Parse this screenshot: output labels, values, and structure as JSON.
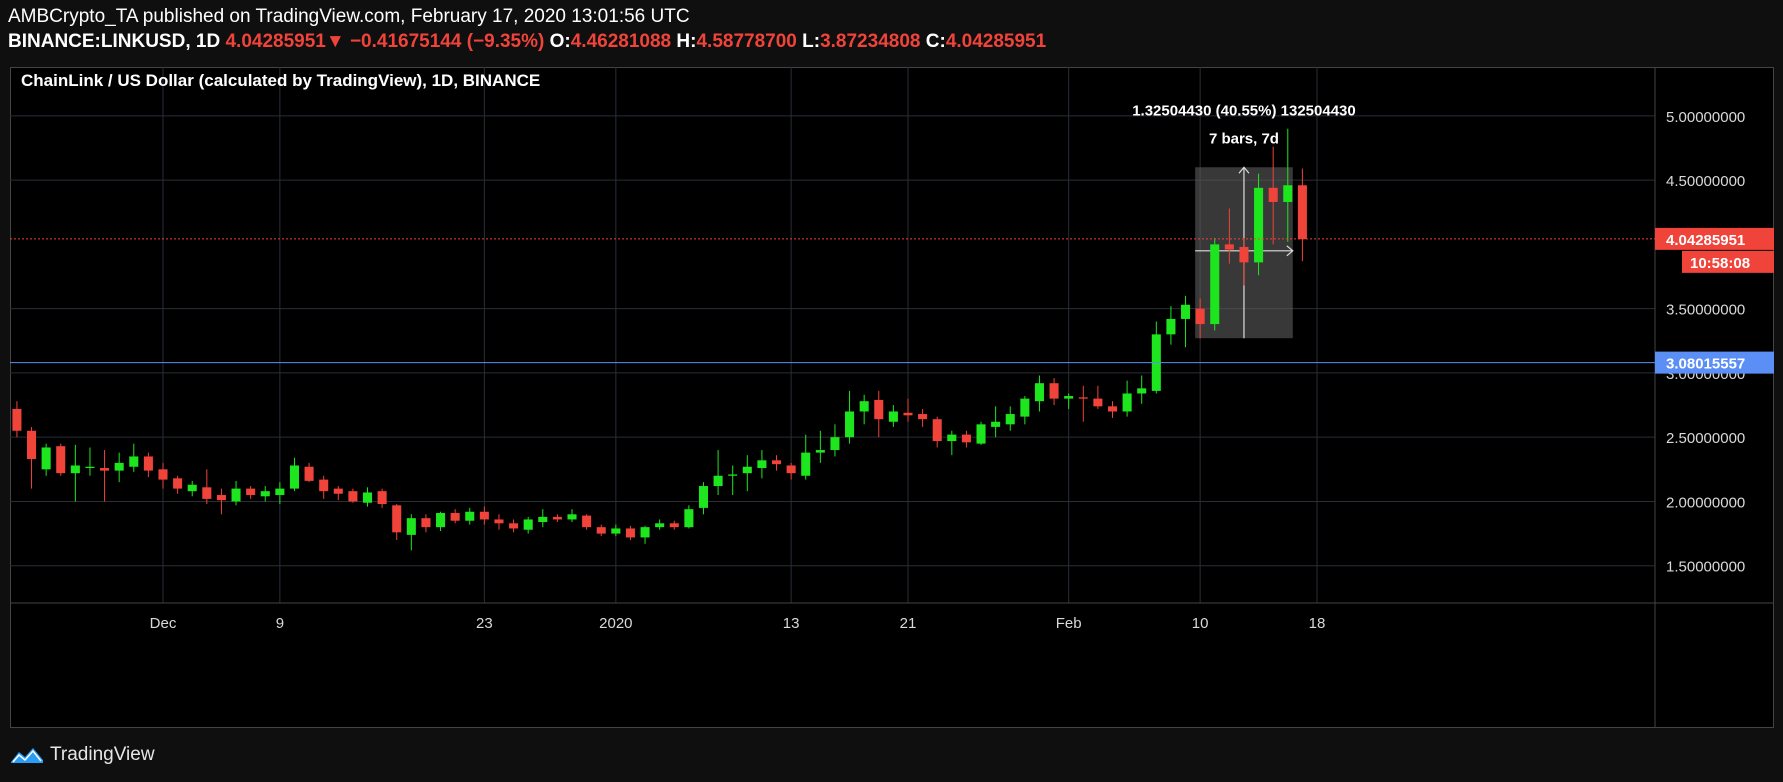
{
  "header": {
    "line1": "AMBCrypto_TA published on TradingView.com, February 17, 2020 13:01:56 UTC",
    "symbol": "BINANCE:LINKUSD, 1D",
    "last": "4.04285951",
    "change_arrow": "▼",
    "change": "−0.41675144 (−9.35%)",
    "o_label": "O:",
    "o": "4.46281088",
    "h_label": "H:",
    "h": "4.58778700",
    "l_label": "L:",
    "l": "3.87234808",
    "c_label": "C:",
    "c": "4.04285951"
  },
  "footer": {
    "brand": "TradingView"
  },
  "colors": {
    "up": "#1ee61e",
    "down": "#f0433a",
    "grid": "#2a2e39",
    "support": "#5b8ff5",
    "price_line": "#f0433a",
    "bg": "#000000"
  },
  "chart_data": {
    "type": "candlestick",
    "title": "ChainLink / US Dollar (calculated by TradingView), 1D, BINANCE",
    "x_tick_labels": [
      {
        "label": "Dec",
        "date": "2019-12-01"
      },
      {
        "label": "9",
        "date": "2019-12-09"
      },
      {
        "label": "23",
        "date": "2019-12-23"
      },
      {
        "label": "2020",
        "date": "2020-01-01"
      },
      {
        "label": "13",
        "date": "2020-01-13"
      },
      {
        "label": "21",
        "date": "2020-01-21"
      },
      {
        "label": "Feb",
        "date": "2020-02-01"
      },
      {
        "label": "10",
        "date": "2020-02-10"
      },
      {
        "label": "18",
        "date": "2020-02-18"
      }
    ],
    "y_tick_labels": [
      "5.00000000",
      "4.50000000",
      "3.50000000",
      "3.00000000",
      "2.50000000",
      "2.00000000",
      "1.50000000"
    ],
    "y_ticks": [
      5.0,
      4.5,
      3.5,
      3.0,
      2.5,
      2.0,
      1.5
    ],
    "ylim": [
      1.21,
      5.38
    ],
    "scale": "linear",
    "grid": true,
    "price_label": "4.04285951",
    "price_value": 4.04285951,
    "countdown_label": "10:58:08",
    "support_label": "3.08015557",
    "support_value": 3.08015557,
    "measure": {
      "start_date": "2020-02-10",
      "end_date": "2020-02-16",
      "low": 3.27,
      "high": 4.6,
      "label_line1": "1.32504430 (40.55%) 132504430",
      "label_line2": "7 bars, 7d"
    },
    "candles": [
      {
        "date": "2019-11-21",
        "o": 2.72,
        "h": 2.78,
        "l": 2.5,
        "c": 2.55
      },
      {
        "date": "2019-11-22",
        "o": 2.55,
        "h": 2.58,
        "l": 2.1,
        "c": 2.33
      },
      {
        "date": "2019-11-23",
        "o": 2.25,
        "h": 2.45,
        "l": 2.2,
        "c": 2.42
      },
      {
        "date": "2019-11-24",
        "o": 2.43,
        "h": 2.45,
        "l": 2.2,
        "c": 2.22
      },
      {
        "date": "2019-11-25",
        "o": 2.22,
        "h": 2.44,
        "l": 2.0,
        "c": 2.28
      },
      {
        "date": "2019-11-26",
        "o": 2.26,
        "h": 2.42,
        "l": 2.2,
        "c": 2.27
      },
      {
        "date": "2019-11-27",
        "o": 2.26,
        "h": 2.4,
        "l": 2.0,
        "c": 2.24
      },
      {
        "date": "2019-11-28",
        "o": 2.24,
        "h": 2.38,
        "l": 2.15,
        "c": 2.3
      },
      {
        "date": "2019-11-29",
        "o": 2.27,
        "h": 2.45,
        "l": 2.23,
        "c": 2.35
      },
      {
        "date": "2019-11-30",
        "o": 2.35,
        "h": 2.38,
        "l": 2.19,
        "c": 2.24
      },
      {
        "date": "2019-12-01",
        "o": 2.25,
        "h": 2.3,
        "l": 2.1,
        "c": 2.17
      },
      {
        "date": "2019-12-02",
        "o": 2.18,
        "h": 2.2,
        "l": 2.06,
        "c": 2.1
      },
      {
        "date": "2019-12-03",
        "o": 2.08,
        "h": 2.16,
        "l": 2.04,
        "c": 2.13
      },
      {
        "date": "2019-12-04",
        "o": 2.11,
        "h": 2.25,
        "l": 1.98,
        "c": 2.02
      },
      {
        "date": "2019-12-05",
        "o": 2.05,
        "h": 2.1,
        "l": 1.9,
        "c": 2.01
      },
      {
        "date": "2019-12-06",
        "o": 2.0,
        "h": 2.16,
        "l": 1.97,
        "c": 2.1
      },
      {
        "date": "2019-12-07",
        "o": 2.1,
        "h": 2.12,
        "l": 2.02,
        "c": 2.05
      },
      {
        "date": "2019-12-08",
        "o": 2.04,
        "h": 2.12,
        "l": 2.0,
        "c": 2.08
      },
      {
        "date": "2019-12-09",
        "o": 2.05,
        "h": 2.15,
        "l": 1.98,
        "c": 2.1
      },
      {
        "date": "2019-12-10",
        "o": 2.1,
        "h": 2.34,
        "l": 2.08,
        "c": 2.28
      },
      {
        "date": "2019-12-11",
        "o": 2.27,
        "h": 2.3,
        "l": 2.15,
        "c": 2.16
      },
      {
        "date": "2019-12-12",
        "o": 2.17,
        "h": 2.2,
        "l": 2.02,
        "c": 2.08
      },
      {
        "date": "2019-12-13",
        "o": 2.1,
        "h": 2.12,
        "l": 2.01,
        "c": 2.06
      },
      {
        "date": "2019-12-14",
        "o": 2.08,
        "h": 2.1,
        "l": 1.99,
        "c": 2.0
      },
      {
        "date": "2019-12-15",
        "o": 1.99,
        "h": 2.11,
        "l": 1.96,
        "c": 2.07
      },
      {
        "date": "2019-12-16",
        "o": 2.08,
        "h": 2.1,
        "l": 1.95,
        "c": 1.98
      },
      {
        "date": "2019-12-17",
        "o": 1.97,
        "h": 1.98,
        "l": 1.7,
        "c": 1.76
      },
      {
        "date": "2019-12-18",
        "o": 1.74,
        "h": 1.9,
        "l": 1.62,
        "c": 1.87
      },
      {
        "date": "2019-12-19",
        "o": 1.87,
        "h": 1.9,
        "l": 1.76,
        "c": 1.8
      },
      {
        "date": "2019-12-20",
        "o": 1.8,
        "h": 1.92,
        "l": 1.77,
        "c": 1.91
      },
      {
        "date": "2019-12-21",
        "o": 1.91,
        "h": 1.94,
        "l": 1.83,
        "c": 1.85
      },
      {
        "date": "2019-12-22",
        "o": 1.85,
        "h": 1.95,
        "l": 1.82,
        "c": 1.92
      },
      {
        "date": "2019-12-23",
        "o": 1.92,
        "h": 1.96,
        "l": 1.82,
        "c": 1.86
      },
      {
        "date": "2019-12-24",
        "o": 1.86,
        "h": 1.9,
        "l": 1.78,
        "c": 1.83
      },
      {
        "date": "2019-12-25",
        "o": 1.83,
        "h": 1.86,
        "l": 1.76,
        "c": 1.79
      },
      {
        "date": "2019-12-26",
        "o": 1.78,
        "h": 1.88,
        "l": 1.75,
        "c": 1.86
      },
      {
        "date": "2019-12-27",
        "o": 1.84,
        "h": 1.94,
        "l": 1.8,
        "c": 1.88
      },
      {
        "date": "2019-12-28",
        "o": 1.88,
        "h": 1.9,
        "l": 1.84,
        "c": 1.86
      },
      {
        "date": "2019-12-29",
        "o": 1.86,
        "h": 1.94,
        "l": 1.84,
        "c": 1.9
      },
      {
        "date": "2019-12-30",
        "o": 1.89,
        "h": 1.9,
        "l": 1.78,
        "c": 1.8
      },
      {
        "date": "2019-12-31",
        "o": 1.8,
        "h": 1.82,
        "l": 1.73,
        "c": 1.75
      },
      {
        "date": "2020-01-01",
        "o": 1.75,
        "h": 1.82,
        "l": 1.73,
        "c": 1.79
      },
      {
        "date": "2020-01-02",
        "o": 1.79,
        "h": 1.81,
        "l": 1.7,
        "c": 1.72
      },
      {
        "date": "2020-01-03",
        "o": 1.72,
        "h": 1.81,
        "l": 1.67,
        "c": 1.8
      },
      {
        "date": "2020-01-04",
        "o": 1.8,
        "h": 1.86,
        "l": 1.78,
        "c": 1.83
      },
      {
        "date": "2020-01-05",
        "o": 1.83,
        "h": 1.85,
        "l": 1.78,
        "c": 1.8
      },
      {
        "date": "2020-01-06",
        "o": 1.8,
        "h": 1.97,
        "l": 1.79,
        "c": 1.94
      },
      {
        "date": "2020-01-07",
        "o": 1.95,
        "h": 2.15,
        "l": 1.9,
        "c": 2.12
      },
      {
        "date": "2020-01-08",
        "o": 2.12,
        "h": 2.4,
        "l": 2.05,
        "c": 2.2
      },
      {
        "date": "2020-01-09",
        "o": 2.2,
        "h": 2.28,
        "l": 2.05,
        "c": 2.21
      },
      {
        "date": "2020-01-10",
        "o": 2.22,
        "h": 2.36,
        "l": 2.08,
        "c": 2.27
      },
      {
        "date": "2020-01-11",
        "o": 2.26,
        "h": 2.4,
        "l": 2.18,
        "c": 2.32
      },
      {
        "date": "2020-01-12",
        "o": 2.32,
        "h": 2.36,
        "l": 2.24,
        "c": 2.29
      },
      {
        "date": "2020-01-13",
        "o": 2.28,
        "h": 2.3,
        "l": 2.17,
        "c": 2.22
      },
      {
        "date": "2020-01-14",
        "o": 2.2,
        "h": 2.52,
        "l": 2.17,
        "c": 2.38
      },
      {
        "date": "2020-01-15",
        "o": 2.38,
        "h": 2.55,
        "l": 2.3,
        "c": 2.4
      },
      {
        "date": "2020-01-16",
        "o": 2.4,
        "h": 2.6,
        "l": 2.35,
        "c": 2.5
      },
      {
        "date": "2020-01-17",
        "o": 2.5,
        "h": 2.86,
        "l": 2.45,
        "c": 2.7
      },
      {
        "date": "2020-01-18",
        "o": 2.7,
        "h": 2.83,
        "l": 2.6,
        "c": 2.78
      },
      {
        "date": "2020-01-19",
        "o": 2.79,
        "h": 2.86,
        "l": 2.5,
        "c": 2.64
      },
      {
        "date": "2020-01-20",
        "o": 2.62,
        "h": 2.75,
        "l": 2.58,
        "c": 2.7
      },
      {
        "date": "2020-01-21",
        "o": 2.69,
        "h": 2.8,
        "l": 2.62,
        "c": 2.67
      },
      {
        "date": "2020-01-22",
        "o": 2.68,
        "h": 2.72,
        "l": 2.58,
        "c": 2.64
      },
      {
        "date": "2020-01-23",
        "o": 2.64,
        "h": 2.66,
        "l": 2.42,
        "c": 2.47
      },
      {
        "date": "2020-01-24",
        "o": 2.47,
        "h": 2.55,
        "l": 2.36,
        "c": 2.52
      },
      {
        "date": "2020-01-25",
        "o": 2.52,
        "h": 2.55,
        "l": 2.42,
        "c": 2.46
      },
      {
        "date": "2020-01-26",
        "o": 2.45,
        "h": 2.62,
        "l": 2.44,
        "c": 2.6
      },
      {
        "date": "2020-01-27",
        "o": 2.58,
        "h": 2.74,
        "l": 2.5,
        "c": 2.62
      },
      {
        "date": "2020-01-28",
        "o": 2.6,
        "h": 2.74,
        "l": 2.55,
        "c": 2.68
      },
      {
        "date": "2020-01-29",
        "o": 2.66,
        "h": 2.82,
        "l": 2.6,
        "c": 2.8
      },
      {
        "date": "2020-01-30",
        "o": 2.78,
        "h": 2.98,
        "l": 2.7,
        "c": 2.92
      },
      {
        "date": "2020-01-31",
        "o": 2.92,
        "h": 2.96,
        "l": 2.75,
        "c": 2.8
      },
      {
        "date": "2020-02-01",
        "o": 2.8,
        "h": 2.84,
        "l": 2.72,
        "c": 2.82
      },
      {
        "date": "2020-02-02",
        "o": 2.81,
        "h": 2.9,
        "l": 2.62,
        "c": 2.8
      },
      {
        "date": "2020-02-03",
        "o": 2.8,
        "h": 2.9,
        "l": 2.72,
        "c": 2.74
      },
      {
        "date": "2020-02-04",
        "o": 2.74,
        "h": 2.78,
        "l": 2.65,
        "c": 2.7
      },
      {
        "date": "2020-02-05",
        "o": 2.7,
        "h": 2.94,
        "l": 2.66,
        "c": 2.84
      },
      {
        "date": "2020-02-06",
        "o": 2.84,
        "h": 2.98,
        "l": 2.76,
        "c": 2.88
      },
      {
        "date": "2020-02-07",
        "o": 2.86,
        "h": 3.4,
        "l": 2.84,
        "c": 3.3
      },
      {
        "date": "2020-02-08",
        "o": 3.3,
        "h": 3.52,
        "l": 3.22,
        "c": 3.42
      },
      {
        "date": "2020-02-09",
        "o": 3.42,
        "h": 3.6,
        "l": 3.2,
        "c": 3.53
      },
      {
        "date": "2020-02-10",
        "o": 3.5,
        "h": 3.58,
        "l": 3.27,
        "c": 3.38
      },
      {
        "date": "2020-02-11",
        "o": 3.38,
        "h": 4.05,
        "l": 3.33,
        "c": 4.0
      },
      {
        "date": "2020-02-12",
        "o": 4.0,
        "h": 4.28,
        "l": 3.85,
        "c": 3.96
      },
      {
        "date": "2020-02-13",
        "o": 3.98,
        "h": 4.05,
        "l": 3.68,
        "c": 3.86
      },
      {
        "date": "2020-02-14",
        "o": 3.86,
        "h": 4.55,
        "l": 3.76,
        "c": 4.44
      },
      {
        "date": "2020-02-15",
        "o": 4.44,
        "h": 4.76,
        "l": 4.0,
        "c": 4.33
      },
      {
        "date": "2020-02-16",
        "o": 4.33,
        "h": 4.9,
        "l": 4.02,
        "c": 4.46
      },
      {
        "date": "2020-02-17",
        "o": 4.46,
        "h": 4.59,
        "l": 3.87,
        "c": 4.04
      }
    ]
  }
}
